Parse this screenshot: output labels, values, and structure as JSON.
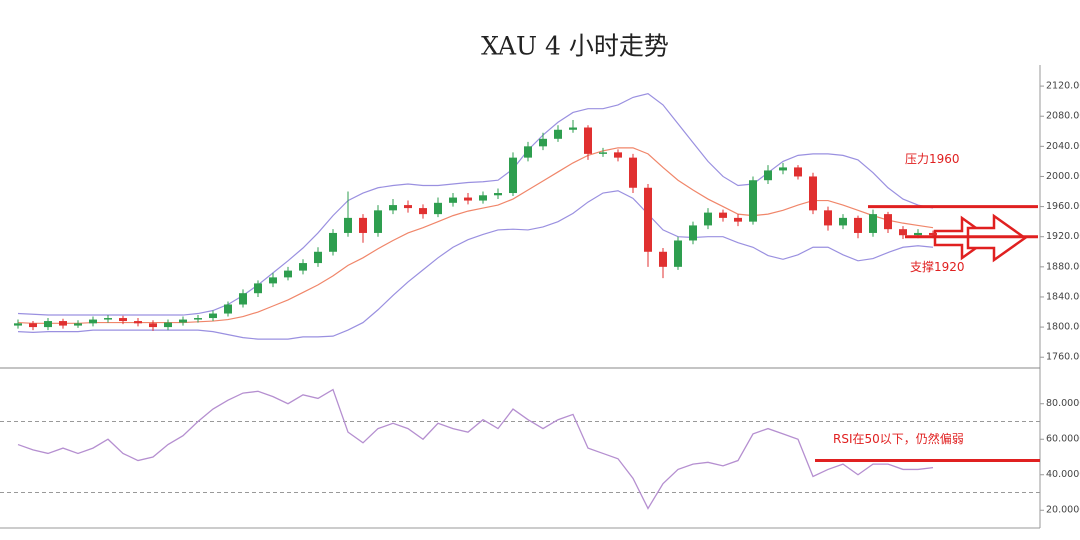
{
  "chart_data": [
    {
      "type": "candlestick",
      "title": "XAU 4 小时走势",
      "open": [
        1802,
        1805,
        1800,
        1808,
        1802,
        1805,
        1810,
        1812,
        1808,
        1805,
        1800,
        1806,
        1810,
        1812,
        1818,
        1830,
        1845,
        1858,
        1866,
        1875,
        1885,
        1900,
        1925,
        1945,
        1925,
        1955,
        1962,
        1958,
        1950,
        1965,
        1972,
        1968,
        1975,
        1978,
        2025,
        2040,
        2050,
        2062,
        2065,
        2030,
        2032,
        2025,
        1985,
        1900,
        1880,
        1915,
        1935,
        1952,
        1945,
        1940,
        1995,
        2008,
        2012,
        2000,
        1955,
        1935,
        1945,
        1925,
        1950,
        1930,
        1922,
        1925
      ],
      "high": [
        1810,
        1808,
        1812,
        1811,
        1809,
        1814,
        1816,
        1815,
        1812,
        1809,
        1810,
        1814,
        1816,
        1822,
        1834,
        1850,
        1862,
        1872,
        1880,
        1890,
        1906,
        1930,
        1980,
        1950,
        1962,
        1970,
        1968,
        1963,
        1972,
        1978,
        1978,
        1980,
        1984,
        2032,
        2046,
        2058,
        2068,
        2075,
        2068,
        2038,
        2036,
        2030,
        1990,
        1905,
        1920,
        1940,
        1958,
        1956,
        1950,
        2000,
        2015,
        2018,
        2015,
        2005,
        1960,
        1950,
        1948,
        1956,
        1953,
        1934,
        1930,
        1928
      ],
      "low": [
        1798,
        1796,
        1796,
        1798,
        1799,
        1801,
        1806,
        1804,
        1801,
        1795,
        1796,
        1802,
        1806,
        1808,
        1814,
        1826,
        1840,
        1853,
        1862,
        1870,
        1880,
        1895,
        1920,
        1912,
        1920,
        1950,
        1952,
        1944,
        1946,
        1960,
        1963,
        1964,
        1970,
        1974,
        2020,
        2035,
        2046,
        2058,
        2022,
        2026,
        2020,
        1978,
        1880,
        1865,
        1876,
        1910,
        1930,
        1940,
        1934,
        1936,
        1990,
        2003,
        1996,
        1950,
        1928,
        1930,
        1918,
        1920,
        1925,
        1917,
        1918,
        1918
      ],
      "close": [
        1805,
        1800,
        1808,
        1802,
        1805,
        1810,
        1812,
        1808,
        1805,
        1800,
        1806,
        1810,
        1812,
        1818,
        1830,
        1845,
        1858,
        1866,
        1875,
        1885,
        1900,
        1925,
        1945,
        1925,
        1955,
        1962,
        1958,
        1950,
        1965,
        1972,
        1968,
        1975,
        1978,
        2025,
        2040,
        2050,
        2062,
        2065,
        2030,
        2032,
        2025,
        1985,
        1900,
        1880,
        1915,
        1935,
        1952,
        1945,
        1940,
        1995,
        2008,
        2012,
        2000,
        1955,
        1935,
        1945,
        1925,
        1950,
        1930,
        1922,
        1925,
        1922
      ],
      "up_color": "#2e9e4f",
      "down_color": "#e03030",
      "overlays": [
        {
          "color": "#9a90e0",
          "values": [
            1818,
            1817,
            1816,
            1816,
            1816,
            1816,
            1816,
            1816,
            1816,
            1816,
            1816,
            1816,
            1818,
            1822,
            1830,
            1842,
            1856,
            1872,
            1888,
            1905,
            1925,
            1948,
            1968,
            1978,
            1985,
            1988,
            1990,
            1988,
            1988,
            1990,
            1992,
            1993,
            1995,
            2010,
            2035,
            2055,
            2072,
            2085,
            2090,
            2090,
            2095,
            2105,
            2110,
            2095,
            2070,
            2045,
            2020,
            2000,
            1988,
            1990,
            2005,
            2020,
            2028,
            2030,
            2030,
            2028,
            2022,
            2005,
            1985,
            1970,
            1962,
            1958
          ]
        },
        {
          "color": "#f0866a",
          "values": [
            1806,
            1805,
            1805,
            1805,
            1805,
            1806,
            1806,
            1806,
            1806,
            1806,
            1806,
            1806,
            1807,
            1808,
            1810,
            1814,
            1820,
            1828,
            1836,
            1846,
            1856,
            1868,
            1882,
            1892,
            1904,
            1915,
            1925,
            1932,
            1940,
            1948,
            1954,
            1958,
            1962,
            1970,
            1982,
            1994,
            2006,
            2018,
            2028,
            2034,
            2038,
            2038,
            2030,
            2012,
            1995,
            1982,
            1970,
            1960,
            1950,
            1948,
            1950,
            1955,
            1962,
            1968,
            1968,
            1962,
            1955,
            1948,
            1942,
            1938,
            1935,
            1932
          ]
        },
        {
          "color": "#9a90e0",
          "values": [
            1794,
            1793,
            1794,
            1794,
            1794,
            1796,
            1796,
            1796,
            1796,
            1796,
            1796,
            1796,
            1796,
            1794,
            1790,
            1786,
            1784,
            1784,
            1784,
            1787,
            1787,
            1788,
            1796,
            1806,
            1823,
            1842,
            1860,
            1876,
            1892,
            1906,
            1916,
            1923,
            1929,
            1930,
            1929,
            1933,
            1940,
            1951,
            1966,
            1978,
            1981,
            1971,
            1950,
            1929,
            1920,
            1919,
            1920,
            1920,
            1912,
            1906,
            1895,
            1890,
            1896,
            1906,
            1906,
            1896,
            1888,
            1891,
            1899,
            1906,
            1908,
            1906
          ]
        }
      ],
      "ylim": [
        1747,
        2148
      ],
      "yticks": [
        {
          "value": 1760,
          "label": "1760.00"
        },
        {
          "value": 1800,
          "label": "1800.00"
        },
        {
          "value": 1840,
          "label": "1840.00"
        },
        {
          "value": 1880,
          "label": "1880.00"
        },
        {
          "value": 1920,
          "label": "1920.00"
        },
        {
          "value": 1960,
          "label": "1960.00"
        },
        {
          "value": 2000,
          "label": "2000.00"
        },
        {
          "value": 2040,
          "label": "2040.00"
        },
        {
          "value": 2080,
          "label": "2080.00"
        },
        {
          "value": 2120,
          "label": "2120.00"
        }
      ],
      "annotations": [
        {
          "label": "压力1960",
          "value": 1960,
          "color": "#e02020"
        },
        {
          "label": "支撑1920",
          "value": 1920,
          "color": "#e02020"
        }
      ]
    },
    {
      "type": "line",
      "values": [
        57,
        54,
        52,
        55,
        52,
        55,
        60,
        52,
        48,
        50,
        57,
        62,
        70,
        77,
        82,
        86,
        87,
        84,
        80,
        85,
        83,
        88,
        64,
        58,
        66,
        69,
        66,
        60,
        69,
        66,
        64,
        71,
        66,
        77,
        71,
        66,
        71,
        74,
        55,
        52,
        49,
        38,
        21,
        35,
        43,
        46,
        47,
        45,
        48,
        63,
        66,
        63,
        60,
        39,
        43,
        46,
        40,
        46,
        46,
        43,
        43,
        44
      ],
      "color": "#b58fd0",
      "ylim": [
        10,
        99
      ],
      "yticks": [
        {
          "value": 20,
          "label": "20.0000"
        },
        {
          "value": 40,
          "label": "40.0000"
        },
        {
          "value": 60,
          "label": "60.0000"
        },
        {
          "value": 80,
          "label": "80.0000"
        }
      ],
      "reference_lines": [
        70,
        30
      ],
      "annotations": [
        {
          "label": "RSI在50以下，仍然偏弱",
          "value": 48,
          "color": "#e02020"
        }
      ]
    }
  ]
}
